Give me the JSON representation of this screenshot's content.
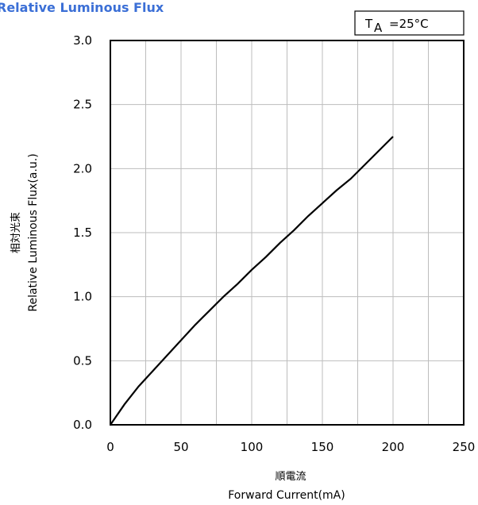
{
  "chart_data": {
    "type": "line",
    "title": "Relative Luminous Flux",
    "condition": {
      "symbol": "T",
      "subscript": "A",
      "value": "=25°C"
    },
    "xlabel_jp": "順電流",
    "xlabel": "Forward Current(mA)",
    "ylabel_jp": "相対光束",
    "ylabel": "Relative Luminous Flux(a.u.)",
    "xlim": [
      0,
      250
    ],
    "ylim": [
      0,
      3.0
    ],
    "x_ticks": [
      "0",
      "50",
      "100",
      "150",
      "200",
      "250"
    ],
    "y_ticks": [
      "0.0",
      "0.5",
      "1.0",
      "1.5",
      "2.0",
      "2.5",
      "3.0"
    ],
    "grid": true,
    "series": [
      {
        "x": [
          0,
          10,
          20,
          30,
          40,
          50,
          60,
          70,
          80,
          90,
          100,
          110,
          120,
          130,
          140,
          150,
          160,
          170,
          180,
          190,
          200
        ],
        "values": [
          0.0,
          0.16,
          0.3,
          0.42,
          0.54,
          0.66,
          0.78,
          0.89,
          1.0,
          1.1,
          1.21,
          1.31,
          1.42,
          1.52,
          1.63,
          1.73,
          1.83,
          1.92,
          2.03,
          2.14,
          2.25
        ]
      }
    ]
  }
}
